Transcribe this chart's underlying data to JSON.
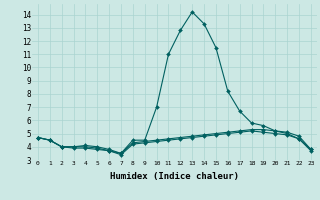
{
  "title": "",
  "xlabel": "Humidex (Indice chaleur)",
  "background_color": "#cce8e4",
  "grid_color": "#aad4d0",
  "line_color": "#006060",
  "xlim": [
    -0.5,
    23.5
  ],
  "ylim": [
    3,
    14.8
  ],
  "yticks": [
    3,
    4,
    5,
    6,
    7,
    8,
    9,
    10,
    11,
    12,
    13,
    14
  ],
  "xticks": [
    0,
    1,
    2,
    3,
    4,
    5,
    6,
    7,
    8,
    9,
    10,
    11,
    12,
    13,
    14,
    15,
    16,
    17,
    18,
    19,
    20,
    21,
    22,
    23
  ],
  "series": [
    [
      4.7,
      4.5,
      4.0,
      4.0,
      4.1,
      4.0,
      3.8,
      3.5,
      4.5,
      4.5,
      7.0,
      11.0,
      12.8,
      14.2,
      13.3,
      11.5,
      8.2,
      6.7,
      5.8,
      5.6,
      5.2,
      5.0,
      4.6,
      3.8
    ],
    [
      4.7,
      4.5,
      4.0,
      4.0,
      4.0,
      3.9,
      3.7,
      3.5,
      4.3,
      4.4,
      4.5,
      4.6,
      4.7,
      4.8,
      4.9,
      5.0,
      5.1,
      5.2,
      5.3,
      5.3,
      5.2,
      5.1,
      4.8,
      3.8
    ],
    [
      4.7,
      4.5,
      4.0,
      3.9,
      3.9,
      3.8,
      3.7,
      3.4,
      4.2,
      4.3,
      4.4,
      4.5,
      4.6,
      4.7,
      4.8,
      4.9,
      5.0,
      5.1,
      5.2,
      5.1,
      5.0,
      4.9,
      4.6,
      3.7
    ]
  ]
}
